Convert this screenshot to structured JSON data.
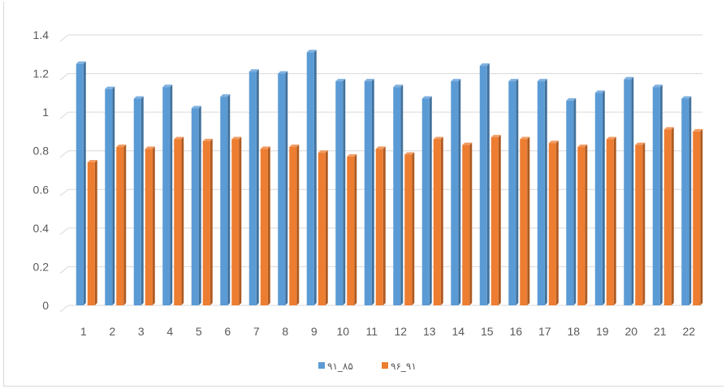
{
  "chart_data": {
    "type": "bar",
    "categories": [
      "1",
      "2",
      "3",
      "4",
      "5",
      "6",
      "7",
      "8",
      "9",
      "10",
      "11",
      "12",
      "13",
      "14",
      "15",
      "16",
      "17",
      "18",
      "19",
      "20",
      "21",
      "22"
    ],
    "series": [
      {
        "name": "۹۱_۸۵",
        "color": "#5b9bd5",
        "values": [
          1.25,
          1.12,
          1.07,
          1.13,
          1.02,
          1.08,
          1.21,
          1.2,
          1.31,
          1.16,
          1.16,
          1.13,
          1.07,
          1.16,
          1.24,
          1.16,
          1.16,
          1.06,
          1.1,
          1.17,
          1.13,
          1.07
        ]
      },
      {
        "name": "۹۶_۹۱",
        "color": "#ed7d31",
        "values": [
          0.74,
          0.82,
          0.81,
          0.86,
          0.85,
          0.86,
          0.81,
          0.82,
          0.79,
          0.77,
          0.81,
          0.78,
          0.86,
          0.83,
          0.87,
          0.86,
          0.84,
          0.82,
          0.86,
          0.83,
          0.91,
          0.9
        ]
      }
    ],
    "ylim": [
      0,
      1.4
    ],
    "yticks": [
      "0",
      "0.2",
      "0.4",
      "0.6",
      "0.8",
      "1",
      "1.2",
      "1.4"
    ],
    "grid": true,
    "legend_position": "bottom",
    "style": "3d-clustered-column"
  }
}
